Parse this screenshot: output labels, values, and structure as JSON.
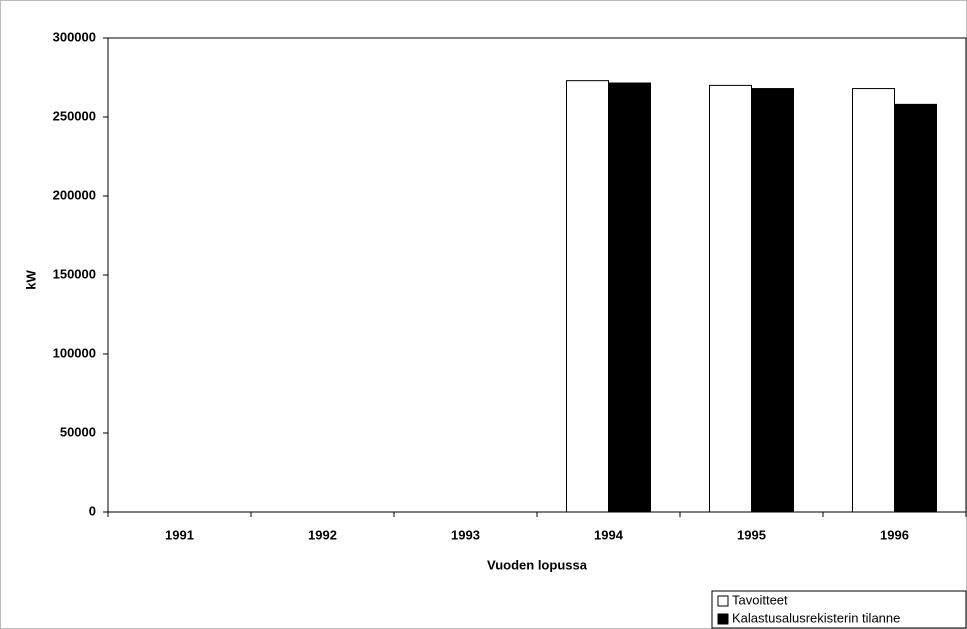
{
  "chart_data": {
    "type": "bar",
    "categories": [
      "1991",
      "1992",
      "1993",
      "1994",
      "1995",
      "1996"
    ],
    "series": [
      {
        "name": "Tavoitteet",
        "color": "#ffffff",
        "values": [
          null,
          null,
          null,
          273000,
          270000,
          268000
        ]
      },
      {
        "name": "Kalastusalusrekisterin tilanne",
        "color": "#000000",
        "values": [
          null,
          null,
          null,
          271500,
          268000,
          258000
        ]
      }
    ],
    "ylabel": "kW",
    "xlabel": "Vuoden lopussa",
    "ylim": [
      0,
      300000
    ],
    "yticks": [
      0,
      50000,
      100000,
      150000,
      200000,
      250000,
      300000
    ],
    "legend": "bottom-right"
  }
}
